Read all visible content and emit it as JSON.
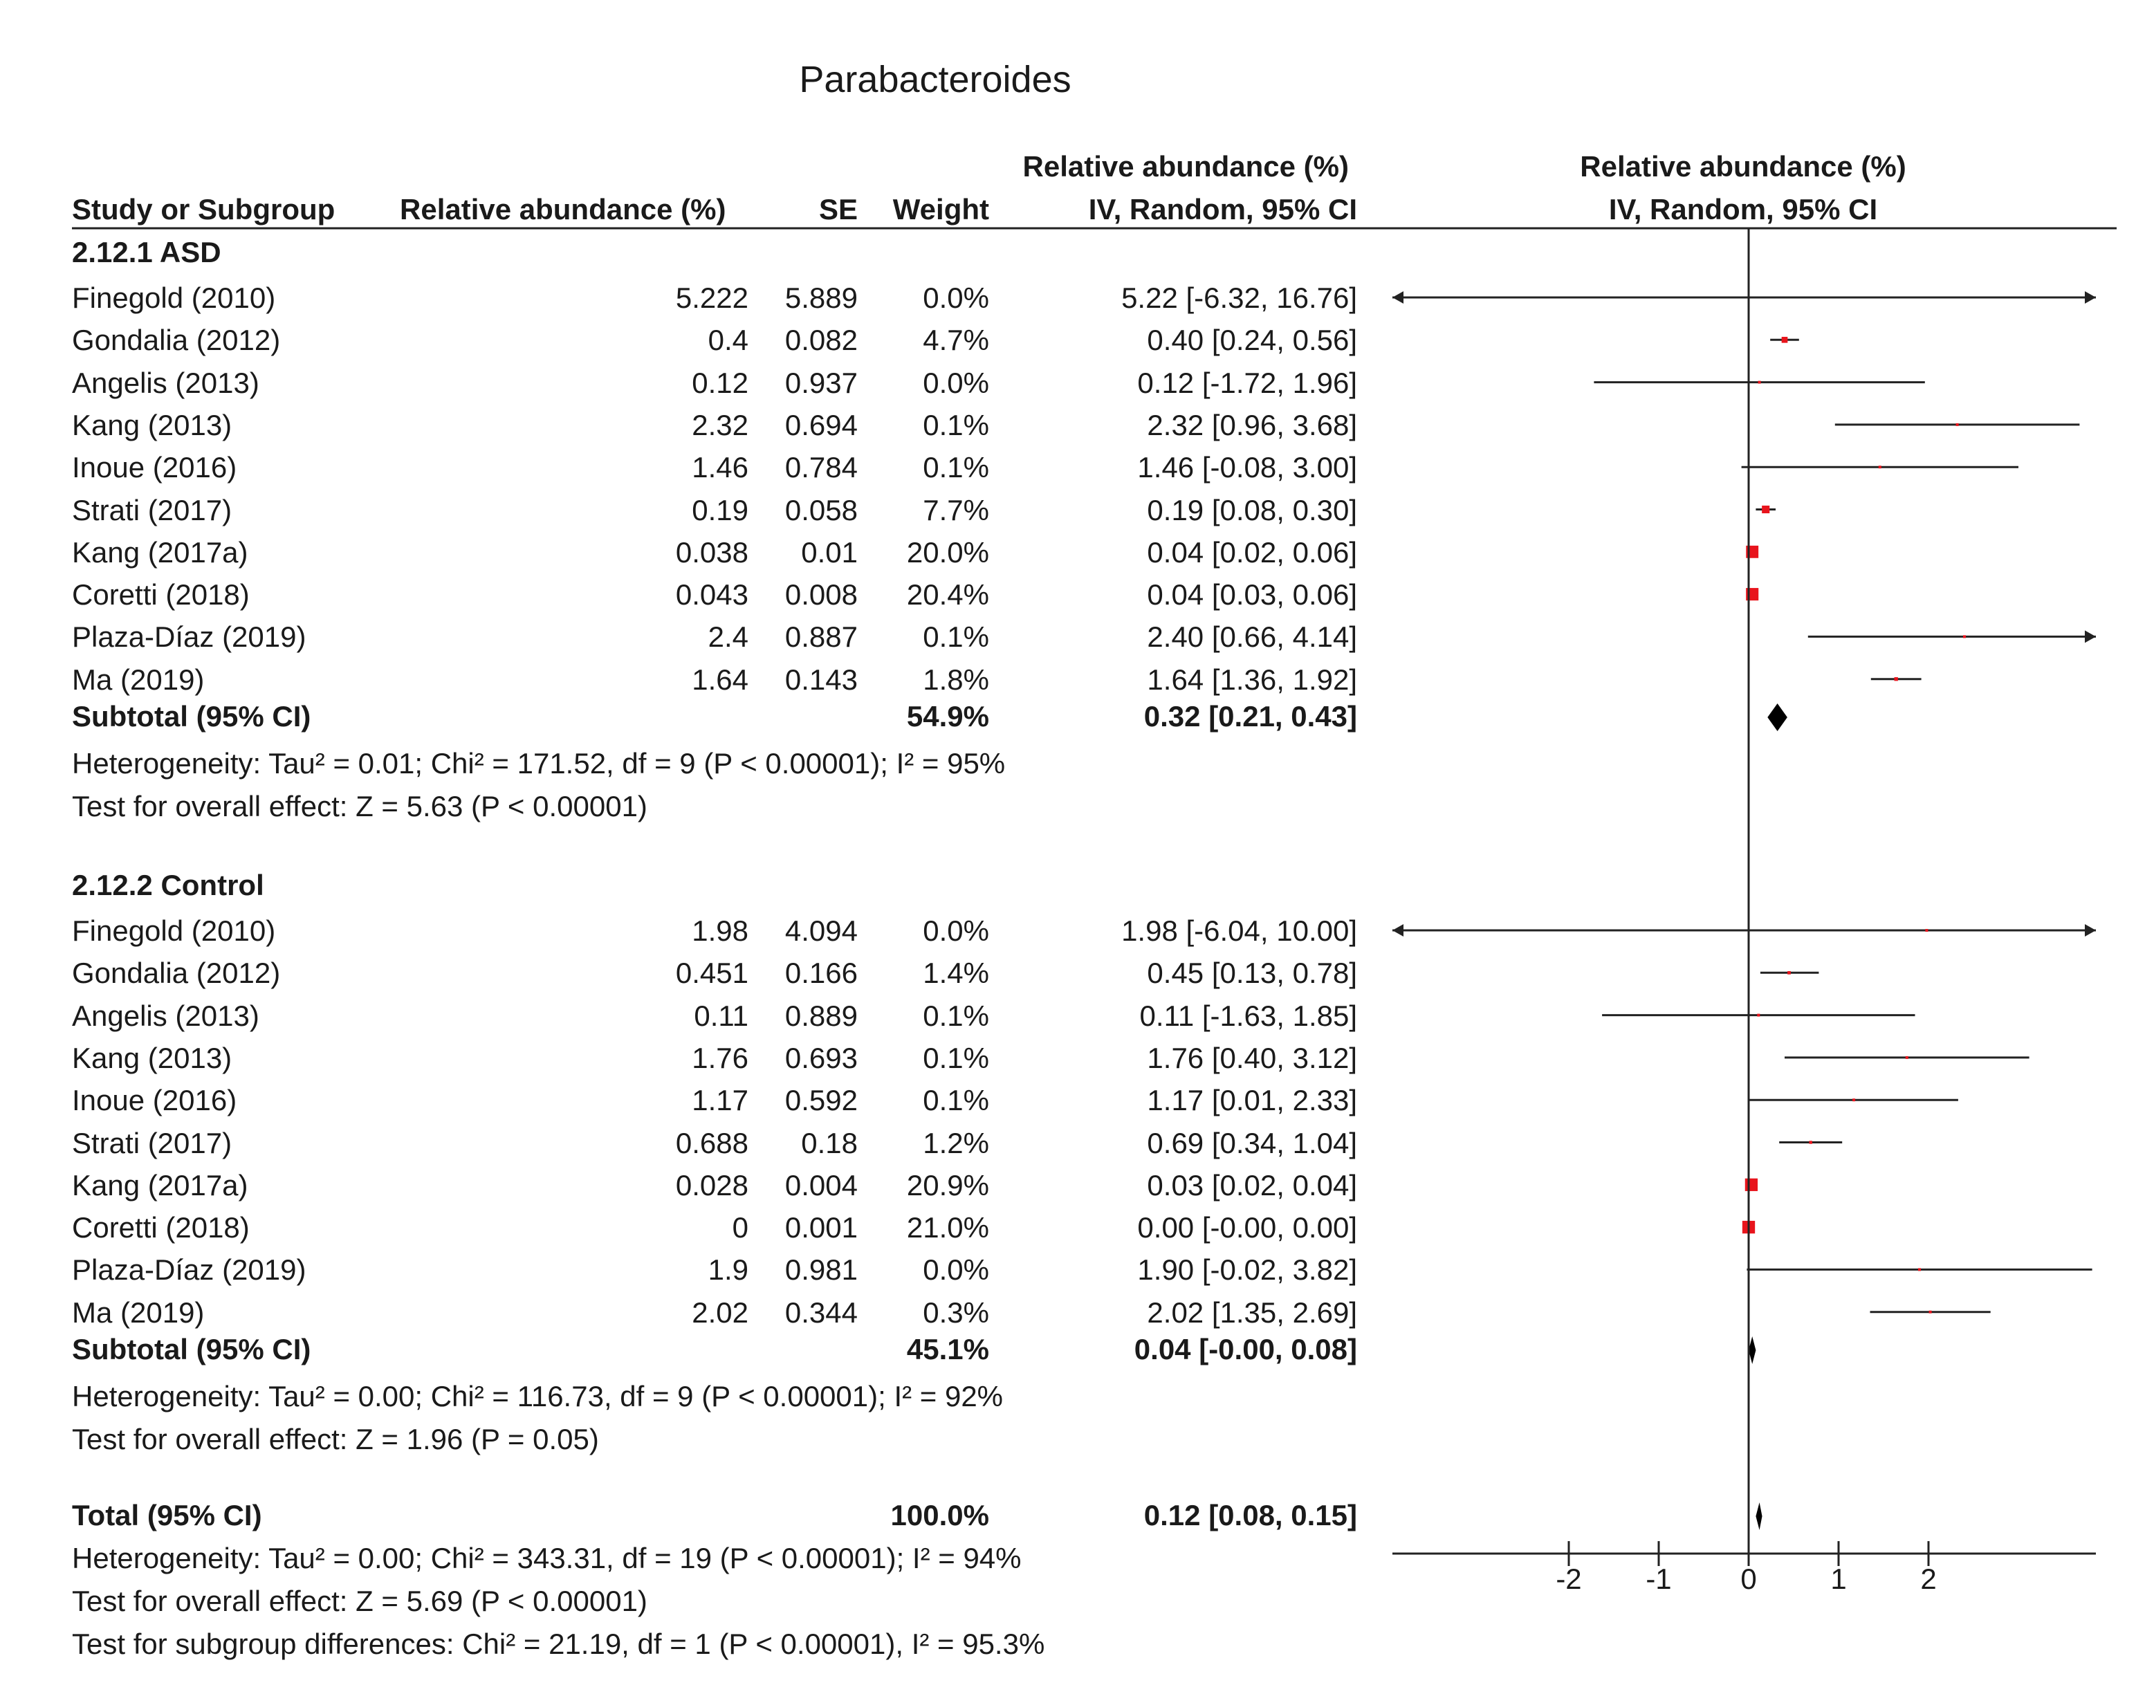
{
  "chart_data": {
    "type": "forest",
    "title": "Parabacteroides",
    "columns": {
      "study": "Study or Subgroup",
      "mean": "Relative abundance (%)",
      "se": "SE",
      "weight": "Weight",
      "effect_title": "Relative abundance (%)",
      "effect_sub": "IV, Random, 95% CI",
      "plot_title": "Relative abundance (%)",
      "plot_sub": "IV, Random, 95% CI"
    },
    "xlim": [
      -4,
      4
    ],
    "x_ticks": [
      -2,
      -1,
      0,
      1,
      2
    ],
    "x_tick_labels": [
      "-2",
      "-1",
      "0",
      "1",
      "2"
    ],
    "groups": [
      {
        "name": "2.12.1 ASD",
        "studies": [
          {
            "study": "Finegold (2010)",
            "mean": "5.222",
            "se": "5.889",
            "weight": "0.0%",
            "ci": "5.22 [-6.32, 16.76]",
            "est": 5.22,
            "lo": -6.32,
            "hi": 16.76
          },
          {
            "study": "Gondalia (2012)",
            "mean": "0.4",
            "se": "0.082",
            "weight": "4.7%",
            "ci": "0.40 [0.24, 0.56]",
            "est": 0.4,
            "lo": 0.24,
            "hi": 0.56
          },
          {
            "study": "Angelis (2013)",
            "mean": "0.12",
            "se": "0.937",
            "weight": "0.0%",
            "ci": "0.12 [-1.72, 1.96]",
            "est": 0.12,
            "lo": -1.72,
            "hi": 1.96
          },
          {
            "study": "Kang (2013)",
            "mean": "2.32",
            "se": "0.694",
            "weight": "0.1%",
            "ci": "2.32 [0.96, 3.68]",
            "est": 2.32,
            "lo": 0.96,
            "hi": 3.68
          },
          {
            "study": "Inoue (2016)",
            "mean": "1.46",
            "se": "0.784",
            "weight": "0.1%",
            "ci": "1.46 [-0.08, 3.00]",
            "est": 1.46,
            "lo": -0.08,
            "hi": 3.0
          },
          {
            "study": "Strati (2017)",
            "mean": "0.19",
            "se": "0.058",
            "weight": "7.7%",
            "ci": "0.19 [0.08, 0.30]",
            "est": 0.19,
            "lo": 0.08,
            "hi": 0.3
          },
          {
            "study": "Kang (2017a)",
            "mean": "0.038",
            "se": "0.01",
            "weight": "20.0%",
            "ci": "0.04 [0.02, 0.06]",
            "est": 0.04,
            "lo": 0.02,
            "hi": 0.06
          },
          {
            "study": "Coretti (2018)",
            "mean": "0.043",
            "se": "0.008",
            "weight": "20.4%",
            "ci": "0.04 [0.03, 0.06]",
            "est": 0.04,
            "lo": 0.03,
            "hi": 0.06
          },
          {
            "study": "Plaza-Díaz (2019)",
            "mean": "2.4",
            "se": "0.887",
            "weight": "0.1%",
            "ci": "2.40 [0.66, 4.14]",
            "est": 2.4,
            "lo": 0.66,
            "hi": 4.14
          },
          {
            "study": "Ma (2019)",
            "mean": "1.64",
            "se": "0.143",
            "weight": "1.8%",
            "ci": "1.64 [1.36, 1.92]",
            "est": 1.64,
            "lo": 1.36,
            "hi": 1.92
          }
        ],
        "subtotal": {
          "label": "Subtotal (95% CI)",
          "weight": "54.9%",
          "ci": "0.32 [0.21, 0.43]",
          "est": 0.32,
          "lo": 0.21,
          "hi": 0.43
        },
        "heterogeneity": "Heterogeneity: Tau² = 0.01; Chi² = 171.52, df = 9 (P < 0.00001); I² = 95%",
        "overall": "Test for overall effect: Z = 5.63 (P < 0.00001)"
      },
      {
        "name": "2.12.2 Control",
        "studies": [
          {
            "study": "Finegold (2010)",
            "mean": "1.98",
            "se": "4.094",
            "weight": "0.0%",
            "ci": "1.98 [-6.04, 10.00]",
            "est": 1.98,
            "lo": -6.04,
            "hi": 10.0
          },
          {
            "study": "Gondalia (2012)",
            "mean": "0.451",
            "se": "0.166",
            "weight": "1.4%",
            "ci": "0.45 [0.13, 0.78]",
            "est": 0.45,
            "lo": 0.13,
            "hi": 0.78
          },
          {
            "study": "Angelis (2013)",
            "mean": "0.11",
            "se": "0.889",
            "weight": "0.1%",
            "ci": "0.11 [-1.63, 1.85]",
            "est": 0.11,
            "lo": -1.63,
            "hi": 1.85
          },
          {
            "study": "Kang (2013)",
            "mean": "1.76",
            "se": "0.693",
            "weight": "0.1%",
            "ci": "1.76 [0.40, 3.12]",
            "est": 1.76,
            "lo": 0.4,
            "hi": 3.12
          },
          {
            "study": "Inoue (2016)",
            "mean": "1.17",
            "se": "0.592",
            "weight": "0.1%",
            "ci": "1.17 [0.01, 2.33]",
            "est": 1.17,
            "lo": 0.01,
            "hi": 2.33
          },
          {
            "study": "Strati (2017)",
            "mean": "0.688",
            "se": "0.18",
            "weight": "1.2%",
            "ci": "0.69 [0.34, 1.04]",
            "est": 0.69,
            "lo": 0.34,
            "hi": 1.04
          },
          {
            "study": "Kang (2017a)",
            "mean": "0.028",
            "se": "0.004",
            "weight": "20.9%",
            "ci": "0.03 [0.02, 0.04]",
            "est": 0.03,
            "lo": 0.02,
            "hi": 0.04
          },
          {
            "study": "Coretti (2018)",
            "mean": "0",
            "se": "0.001",
            "weight": "21.0%",
            "ci": "0.00 [-0.00, 0.00]",
            "est": 0.0,
            "lo": -0.0,
            "hi": 0.0
          },
          {
            "study": "Plaza-Díaz (2019)",
            "mean": "1.9",
            "se": "0.981",
            "weight": "0.0%",
            "ci": "1.90 [-0.02, 3.82]",
            "est": 1.9,
            "lo": -0.02,
            "hi": 3.82
          },
          {
            "study": "Ma (2019)",
            "mean": "2.02",
            "se": "0.344",
            "weight": "0.3%",
            "ci": "2.02 [1.35, 2.69]",
            "est": 2.02,
            "lo": 1.35,
            "hi": 2.69
          }
        ],
        "subtotal": {
          "label": "Subtotal (95% CI)",
          "weight": "45.1%",
          "ci": "0.04 [-0.00, 0.08]",
          "est": 0.04,
          "lo": -0.0,
          "hi": 0.08
        },
        "heterogeneity": "Heterogeneity: Tau² = 0.00; Chi² = 116.73, df = 9 (P < 0.00001); I² = 92%",
        "overall": "Test for overall effect: Z = 1.96 (P = 0.05)"
      }
    ],
    "total": {
      "label": "Total (95% CI)",
      "weight": "100.0%",
      "ci": "0.12 [0.08, 0.15]",
      "est": 0.12,
      "lo": 0.08,
      "hi": 0.15,
      "heterogeneity": "Heterogeneity: Tau² = 0.00; Chi² = 343.31, df = 19 (P < 0.00001); I² = 94%",
      "overall": "Test for overall effect: Z = 5.69 (P < 0.00001)",
      "subgroup": "Test for subgroup differences: Chi² = 21.19, df = 1 (P < 0.00001), I² = 95.3%"
    },
    "colors": {
      "point": "#e8141c",
      "line": "#222222",
      "diamond": "#000000"
    }
  }
}
